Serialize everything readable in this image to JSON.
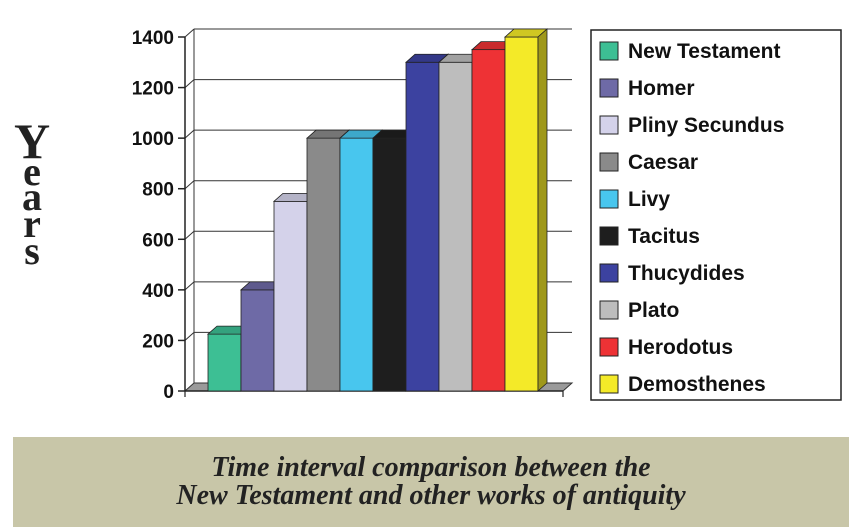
{
  "chart_data": {
    "type": "bar",
    "categories": [
      "New Testament",
      "Homer",
      "Pliny Secundus",
      "Caesar",
      "Livy",
      "Tacitus",
      "Thucydides",
      "Plato",
      "Herodotus",
      "Demosthenes"
    ],
    "values": [
      225,
      400,
      750,
      1000,
      1000,
      1000,
      1300,
      1300,
      1350,
      1400
    ],
    "colors": [
      "#3dbf94",
      "#6e6aa6",
      "#d4d2ea",
      "#8a8a8a",
      "#48c6ee",
      "#1e1e1e",
      "#3c42a0",
      "#bdbdbd",
      "#ee3235",
      "#f4ea28"
    ],
    "title": "",
    "xlabel": "",
    "ylabel": "Years",
    "ylim": [
      0,
      1400
    ],
    "yticks": [
      "0",
      "200",
      "400",
      "600",
      "800",
      "1000",
      "1200",
      "1400"
    ],
    "grid": true,
    "legend_position": "right",
    "style": "3d"
  },
  "caption": {
    "line1": "Time interval comparison between the",
    "line2": "New Testament and other works of antiquity"
  }
}
